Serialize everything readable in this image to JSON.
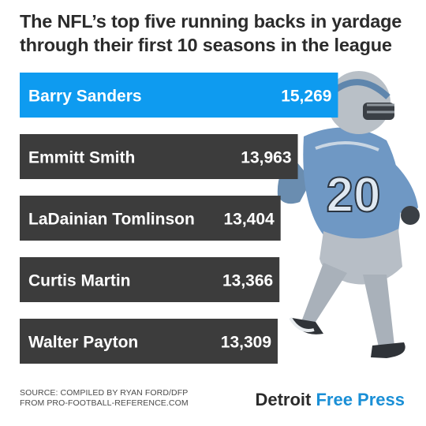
{
  "title": {
    "line1": "The NFL’s top five running backs in yardage",
    "line2": "through their first 10 seasons in the league"
  },
  "chart_data": {
    "type": "bar",
    "orientation": "horizontal",
    "title": "The NFL’s top five running backs in yardage through their first 10 seasons in the league",
    "categories": [
      "Barry Sanders",
      "Emmitt Smith",
      "LaDainian Tomlinson",
      "Curtis Martin",
      "Walter Payton"
    ],
    "values": [
      15269,
      13963,
      13404,
      13366,
      13309
    ],
    "value_labels": [
      "15,269",
      "13,963",
      "13,404",
      "13,366",
      "13,309"
    ],
    "highlight_index": 0,
    "colors": {
      "highlight": "#0e9bf0",
      "default": "#3c3c3c",
      "label": "#ffffff"
    }
  },
  "source": {
    "line1": "SOURCE: COMPILED BY RYAN FORD/DFP",
    "line2": "FROM PRO-FOOTBALL-REFERENCE.COM"
  },
  "brand": {
    "part1": "Detroit",
    "part2": "Free Press"
  },
  "image": {
    "icon": "running-back-photo",
    "jersey_number": "20"
  }
}
